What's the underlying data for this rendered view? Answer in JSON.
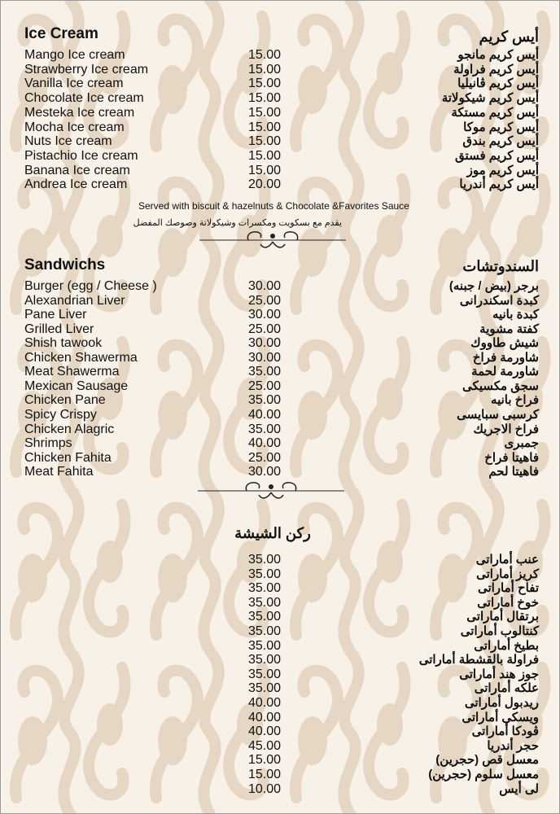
{
  "colors": {
    "background": "#f7f1e8",
    "pattern": "#e3d4bf",
    "text": "#111111"
  },
  "ice_cream": {
    "title_en": "Ice Cream",
    "title_ar": "أيس كريم",
    "items": [
      {
        "en": "Mango Ice cream",
        "price": "15.00",
        "ar": "أيس كريم مانجو"
      },
      {
        "en": "Strawberry Ice cream",
        "price": "15.00",
        "ar": "أيس كريم فراولة"
      },
      {
        "en": "Vanilla Ice cream",
        "price": "15.00",
        "ar": "أيس كريم ڤانيليا"
      },
      {
        "en": "Chocolate Ice cream",
        "price": "15.00",
        "ar": "أيس كريم شيكولاتة"
      },
      {
        "en": "Mesteka Ice cream",
        "price": "15.00",
        "ar": "أيس كريم مستكة"
      },
      {
        "en": "Mocha Ice cream",
        "price": "15.00",
        "ar": "أيس كريم موكا"
      },
      {
        "en": "Nuts Ice cream",
        "price": "15.00",
        "ar": "أيس كريم بندق"
      },
      {
        "en": "Pistachio Ice cream",
        "price": "15.00",
        "ar": "أيس كريم فستق"
      },
      {
        "en": "Banana Ice cream",
        "price": "15.00",
        "ar": "أيس كريم موز"
      },
      {
        "en": "Andrea Ice cream",
        "price": "20.00",
        "ar": "أيس كريم أندريا"
      }
    ],
    "note_en": "Served with biscuit & hazelnuts & Chocolate &Favorites Sauce",
    "note_ar": "يقدم مع بسكويت ومكسرات وشيكولاتة وصوصك المفضل"
  },
  "sandwiches": {
    "title_en": "Sandwichs",
    "title_ar": "السندوتشات",
    "items": [
      {
        "en": "Burger (egg / Cheese )",
        "price": "30.00",
        "ar": "برجر (بيض / جبنه)"
      },
      {
        "en": "Alexandrian Liver",
        "price": "25.00",
        "ar": "كبدة اسكندرانى"
      },
      {
        "en": "Pane Liver",
        "price": "30.00",
        "ar": "كبدة بانيه"
      },
      {
        "en": "Grilled Liver",
        "price": "25.00",
        "ar": "كفتة مشوية"
      },
      {
        "en": "Shish tawook",
        "price": "30.00",
        "ar": "شيش طاووك"
      },
      {
        "en": "Chicken Shawerma",
        "price": "30.00",
        "ar": "شاورمة فراخ"
      },
      {
        "en": "Meat Shawerma",
        "price": "35.00",
        "ar": "شاورمة لحمة"
      },
      {
        "en": "Mexican Sausage",
        "price": "25.00",
        "ar": "سجق مكسيكى"
      },
      {
        "en": "Chicken Pane",
        "price": "35.00",
        "ar": "فراخ بانيه"
      },
      {
        "en": "Spicy Crispy",
        "price": "40.00",
        "ar": "كرسبى سبايسى"
      },
      {
        "en": "Chicken Alagric",
        "price": "35.00",
        "ar": "فراخ الاجريك"
      },
      {
        "en": "Shrimps",
        "price": "40.00",
        "ar": "جمبرى"
      },
      {
        "en": "Chicken Fahita",
        "price": "25.00",
        "ar": "فاهيتا فراخ"
      },
      {
        "en": "Meat Fahita",
        "price": "30.00",
        "ar": "فاهيتا لحم"
      }
    ]
  },
  "shisha": {
    "title_ar": "ركن الشيشة",
    "items": [
      {
        "price": "35.00",
        "ar": "عنب أماراتى"
      },
      {
        "price": "35.00",
        "ar": "كريز أماراتى"
      },
      {
        "price": "35.00",
        "ar": "تفاح أماراتى"
      },
      {
        "price": "35.00",
        "ar": "خوخ أماراتى"
      },
      {
        "price": "35.00",
        "ar": "برتقال أماراتى"
      },
      {
        "price": "35.00",
        "ar": "كنتالوب أماراتى"
      },
      {
        "price": "35.00",
        "ar": "بطيخ أماراتى"
      },
      {
        "price": "35.00",
        "ar": "فراولة بالقشطة أماراتى"
      },
      {
        "price": "35.00",
        "ar": "جوز هند أماراتى"
      },
      {
        "price": "35.00",
        "ar": "علكه أماراتى"
      },
      {
        "price": "40.00",
        "ar": "ريدبول أماراتى"
      },
      {
        "price": "40.00",
        "ar": "ويسكى أماراتى"
      },
      {
        "price": "40.00",
        "ar": "ڤودكا أماراتى"
      },
      {
        "price": "45.00",
        "ar": "حجر أندريا"
      },
      {
        "price": "15.00",
        "ar": "معسل قص (حجرين)"
      },
      {
        "price": "15.00",
        "ar": "معسل سلوم (حجرين)"
      },
      {
        "price": "10.00",
        "ar": "لى أيس"
      }
    ]
  }
}
